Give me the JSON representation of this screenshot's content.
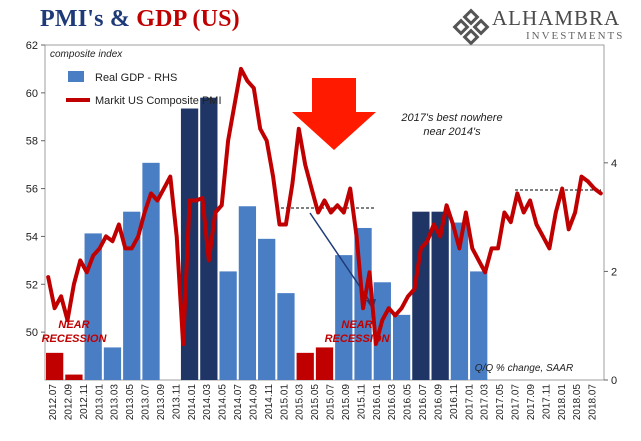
{
  "header": {
    "title_part1": "PMI's & ",
    "title_part2": "GDP (US)"
  },
  "logo": {
    "name": "ALHAMBRA",
    "subtitle": "INVESTMENTS",
    "icon": "alhambra-star-icon"
  },
  "colors": {
    "pmi_line": "#c00000",
    "gdp_bar": "#4a7ec4",
    "gdp_bar_highlight": "#1e3565",
    "gdp_bar_negative": "#c00000",
    "arrow_red": "#ff1a00",
    "arrow_blue": "#1f3a78",
    "title_blue": "#1f3a78"
  },
  "chart_data": {
    "type": "bar+line",
    "left_axis_title": "composite index",
    "left_axis": {
      "min": 48,
      "max": 62,
      "ticks": [
        50,
        52,
        54,
        56,
        58,
        60,
        62
      ]
    },
    "right_axis": {
      "min": 0,
      "max": 6.17,
      "ticks": [
        0,
        2,
        4
      ]
    },
    "x_labels": [
      "2012.07",
      "2012.09",
      "2012.11",
      "2013.01",
      "2013.03",
      "2013.05",
      "2013.07",
      "2013.09",
      "2013.11",
      "2014.01",
      "2014.03",
      "2014.05",
      "2014.07",
      "2014.09",
      "2014.11",
      "2015.01",
      "2015.03",
      "2015.05",
      "2015.07",
      "2015.09",
      "2015.11",
      "2016.01",
      "2016.03",
      "2016.05",
      "2016.07",
      "2016.09",
      "2016.11",
      "2017.01",
      "2017.03",
      "2017.05",
      "2017.07",
      "2017.09",
      "2017.11",
      "2018.01",
      "2018.05",
      "2018.07"
    ],
    "gdp_series": {
      "name": "Real GDP - RHS",
      "axis": "right",
      "quarters": [
        {
          "start": 0,
          "value": 0.5,
          "negative": true
        },
        {
          "start": 3,
          "value": 0.1,
          "negative": true
        },
        {
          "start": 6,
          "value": 2.7
        },
        {
          "start": 9,
          "value": 0.6
        },
        {
          "start": 12,
          "value": 3.1
        },
        {
          "start": 15,
          "value": 4.0
        },
        {
          "start": 21,
          "value": 5.0,
          "highlight": true
        },
        {
          "start": 24,
          "value": 5.2,
          "highlight": true
        },
        {
          "start": 27,
          "value": 2.0
        },
        {
          "start": 30,
          "value": 3.2
        },
        {
          "start": 33,
          "value": 2.6
        },
        {
          "start": 36,
          "value": 1.6
        },
        {
          "start": 39,
          "value": 0.5,
          "negative": true
        },
        {
          "start": 42,
          "value": 0.6,
          "negative": true
        },
        {
          "start": 45,
          "value": 2.3
        },
        {
          "start": 48,
          "value": 2.8
        },
        {
          "start": 51,
          "value": 1.8
        },
        {
          "start": 54,
          "value": 1.2
        },
        {
          "start": 57,
          "value": 3.1,
          "highlight": true
        },
        {
          "start": 60,
          "value": 3.1,
          "highlight": true
        },
        {
          "start": 63,
          "value": 2.9
        },
        {
          "start": 66,
          "value": 2.0
        }
      ]
    },
    "pmi_series": {
      "name": "Markit US Composite PMI",
      "axis": "left",
      "values": [
        52.3,
        51.0,
        51.5,
        50.5,
        52.0,
        53.0,
        52.5,
        53.2,
        53.5,
        54.0,
        53.8,
        54.5,
        53.5,
        53.5,
        54.0,
        55.0,
        55.8,
        55.5,
        56.0,
        56.5,
        54.0,
        49.5,
        55.5,
        55.5,
        55.6,
        53.0,
        55.0,
        55.3,
        58.0,
        59.5,
        61.0,
        60.5,
        60.2,
        58.5,
        58.0,
        56.5,
        54.5,
        54.5,
        56.2,
        58.5,
        57.0,
        56.0,
        55.0,
        55.5,
        55.0,
        55.3,
        55.0,
        56.0,
        54.0,
        51.0,
        52.5,
        49.5,
        50.5,
        51.0,
        50.7,
        51.0,
        51.5,
        51.8,
        53.5,
        53.8,
        54.5,
        54.0,
        55.3,
        54.5,
        53.5,
        55.0,
        53.5,
        53.0,
        52.5,
        53.5,
        53.5,
        55.0,
        54.6,
        55.8,
        55.0,
        55.5,
        54.5,
        54.0,
        53.5,
        55.0,
        56.0,
        54.3,
        55.0,
        56.5,
        56.3,
        56.0,
        55.8
      ]
    },
    "x_axis_note": "Q/Q % change, SAAR",
    "annotations": {
      "near_recession_1": "NEAR\nRECESSION",
      "near_recession_2": "NEAR\nRECESSION",
      "comment": "2017's best nowhere near 2014's"
    }
  }
}
